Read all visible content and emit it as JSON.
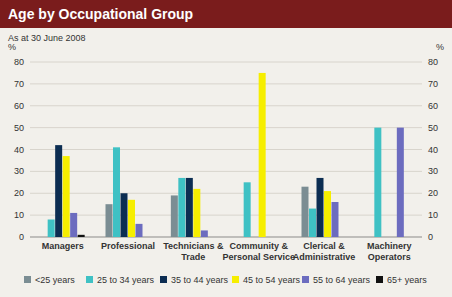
{
  "chart_data": {
    "type": "bar",
    "title": "Age by Occupational Group",
    "subtitle": "As at 30 June 2008",
    "y_label": "%",
    "categories": [
      "Managers",
      "Professional",
      "Technicians & Trade",
      "Community & Personal Service",
      "Clerical & Administrative",
      "Machinery Operators"
    ],
    "series": [
      {
        "name": "<25 years",
        "color": "#7b8d93",
        "values": [
          0,
          15,
          19,
          0,
          23,
          0
        ]
      },
      {
        "name": "25 to 34 years",
        "color": "#3fc1c4",
        "values": [
          8,
          41,
          27,
          25,
          13,
          50
        ]
      },
      {
        "name": "35 to 44 years",
        "color": "#0c2d52",
        "values": [
          42,
          20,
          27,
          0,
          27,
          0
        ]
      },
      {
        "name": "45 to 54 years",
        "color": "#f6ee00",
        "values": [
          37,
          17,
          22,
          75,
          21,
          0
        ]
      },
      {
        "name": "55 to 64 years",
        "color": "#6c6cbf",
        "values": [
          11,
          6,
          3,
          0,
          16,
          50
        ]
      },
      {
        "name": "65+ years",
        "color": "#111111",
        "values": [
          1,
          0,
          0,
          0,
          0,
          0
        ]
      }
    ],
    "ylim": [
      0,
      80
    ],
    "yticks": [
      0,
      10,
      20,
      30,
      40,
      50,
      60,
      70,
      80
    ],
    "grid": true,
    "legend": "bottom"
  }
}
